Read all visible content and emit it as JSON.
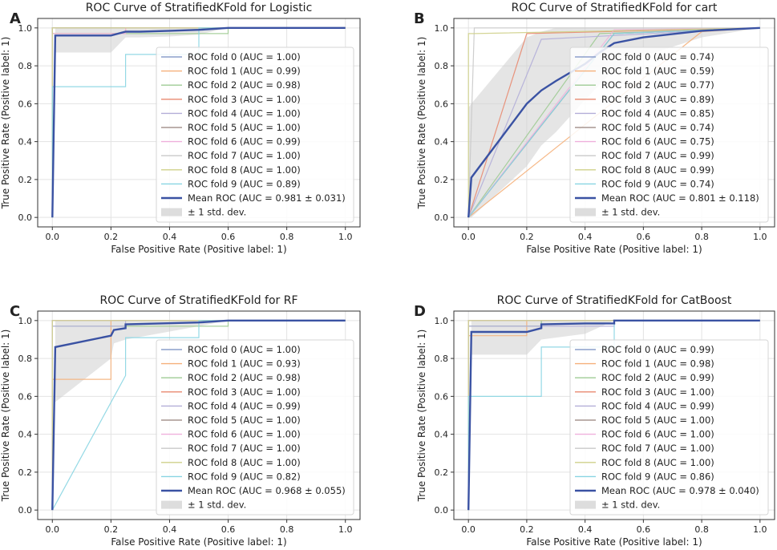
{
  "chart_data": [
    {
      "panel_label": "A",
      "type": "line",
      "title": "ROC Curve of StratifiedKFold for Logistic",
      "xlabel": "False Positive Rate (Positive label: 1)",
      "ylabel": "True Positive Rate (Positive label: 1)",
      "xlim": [
        -0.05,
        1.05
      ],
      "ylim": [
        -0.05,
        1.05
      ],
      "xticks": [
        "0.0",
        "0.2",
        "0.4",
        "0.6",
        "0.8",
        "1.0"
      ],
      "yticks": [
        "0.0",
        "0.2",
        "0.4",
        "0.6",
        "0.8",
        "1.0"
      ],
      "grid": true,
      "legend_loc": "lower-right",
      "series": [
        {
          "name": "ROC fold 0 (AUC = 1.00)",
          "color": "#8c9fcc",
          "x": [
            0,
            0,
            1
          ],
          "y": [
            0,
            1,
            1
          ]
        },
        {
          "name": "ROC fold 1 (AUC = 0.99)",
          "color": "#f5b07a",
          "x": [
            0,
            0,
            0.25,
            0.25,
            1
          ],
          "y": [
            0,
            0.97,
            0.97,
            1,
            1
          ]
        },
        {
          "name": "ROC fold 2 (AUC = 0.98)",
          "color": "#9fcb94",
          "x": [
            0,
            0,
            0.5,
            0.5,
            0.6,
            0.6,
            1
          ],
          "y": [
            0,
            0.97,
            0.97,
            0.97,
            0.97,
            1,
            1
          ]
        },
        {
          "name": "ROC fold 3 (AUC = 1.00)",
          "color": "#e88a70",
          "x": [
            0,
            0,
            1
          ],
          "y": [
            0,
            1,
            1
          ]
        },
        {
          "name": "ROC fold 4 (AUC = 1.00)",
          "color": "#b3aed8",
          "x": [
            0,
            0,
            1
          ],
          "y": [
            0,
            1,
            1
          ]
        },
        {
          "name": "ROC fold 5 (AUC = 1.00)",
          "color": "#a79691",
          "x": [
            0,
            0,
            1
          ],
          "y": [
            0,
            1,
            1
          ]
        },
        {
          "name": "ROC fold 6 (AUC = 0.99)",
          "color": "#efb0dc",
          "x": [
            0,
            0,
            0.25,
            0.25,
            1
          ],
          "y": [
            0,
            0.97,
            0.97,
            1,
            1
          ]
        },
        {
          "name": "ROC fold 7 (AUC = 1.00)",
          "color": "#c9c9c9",
          "x": [
            0,
            0,
            1
          ],
          "y": [
            0,
            1,
            1
          ]
        },
        {
          "name": "ROC fold 8 (AUC = 1.00)",
          "color": "#cfd08a",
          "x": [
            0,
            0,
            1
          ],
          "y": [
            0,
            1,
            1
          ]
        },
        {
          "name": "ROC fold 9 (AUC = 0.89)",
          "color": "#88d5e2",
          "x": [
            0,
            0,
            0.25,
            0.25,
            0.5,
            0.5,
            1
          ],
          "y": [
            0,
            0.69,
            0.69,
            0.86,
            0.86,
            1,
            1
          ]
        }
      ],
      "mean": {
        "name": "Mean ROC (AUC = 0.981 ± 0.031)",
        "color": "#3a52a3",
        "x": [
          0,
          0.01,
          0.1,
          0.2,
          0.25,
          0.3,
          0.4,
          0.5,
          0.6,
          0.8,
          1.0
        ],
        "y": [
          0,
          0.96,
          0.96,
          0.96,
          0.98,
          0.98,
          0.985,
          0.99,
          1.0,
          1.0,
          1.0
        ]
      },
      "band": {
        "name": "± 1 std. dev.",
        "color": "#cfcfcf",
        "x": [
          0.01,
          0.1,
          0.2,
          0.25,
          0.3,
          0.4,
          0.5,
          0.6,
          1.0
        ],
        "upper": [
          1.0,
          1.0,
          1.0,
          1.0,
          1.0,
          1.0,
          1.0,
          1.0,
          1.0
        ],
        "lower": [
          0.87,
          0.87,
          0.87,
          0.95,
          0.95,
          0.955,
          0.965,
          1.0,
          1.0
        ]
      }
    },
    {
      "panel_label": "B",
      "type": "line",
      "title": "ROC Curve of StratifiedKFold for cart",
      "xlabel": "False Positive Rate (Positive label: 1)",
      "ylabel": "True Positive Rate (Positive label: 1)",
      "xlim": [
        -0.05,
        1.05
      ],
      "ylim": [
        -0.05,
        1.05
      ],
      "xticks": [
        "0.0",
        "0.2",
        "0.4",
        "0.6",
        "0.8",
        "1.0"
      ],
      "yticks": [
        "0.0",
        "0.2",
        "0.4",
        "0.6",
        "0.8",
        "1.0"
      ],
      "grid": true,
      "legend_loc": "lower-right",
      "series": [
        {
          "name": "ROC fold 0 (AUC = 0.74)",
          "color": "#8c9fcc",
          "x": [
            0,
            0.5,
            1
          ],
          "y": [
            0,
            0.97,
            1
          ]
        },
        {
          "name": "ROC fold 1 (AUC = 0.59)",
          "color": "#f5b07a",
          "x": [
            0,
            0.8,
            1
          ],
          "y": [
            0,
            0.98,
            1
          ]
        },
        {
          "name": "ROC fold 2 (AUC = 0.77)",
          "color": "#9fcb94",
          "x": [
            0,
            0.45,
            1
          ],
          "y": [
            0,
            0.97,
            1
          ]
        },
        {
          "name": "ROC fold 3 (AUC = 0.89)",
          "color": "#e88a70",
          "x": [
            0,
            0.2,
            1
          ],
          "y": [
            0,
            0.97,
            1
          ]
        },
        {
          "name": "ROC fold 4 (AUC = 0.85)",
          "color": "#b3aed8",
          "x": [
            0,
            0.25,
            1
          ],
          "y": [
            0,
            0.94,
            1
          ]
        },
        {
          "name": "ROC fold 5 (AUC = 0.74)",
          "color": "#a79691",
          "x": [
            0,
            0.5,
            1
          ],
          "y": [
            0,
            0.97,
            1
          ]
        },
        {
          "name": "ROC fold 6 (AUC = 0.75)",
          "color": "#efb0dc",
          "x": [
            0,
            0.5,
            1
          ],
          "y": [
            0,
            0.99,
            1
          ]
        },
        {
          "name": "ROC fold 7 (AUC = 0.99)",
          "color": "#c9c9c9",
          "x": [
            0,
            0.02,
            1
          ],
          "y": [
            0,
            1.0,
            1
          ]
        },
        {
          "name": "ROC fold 8 (AUC = 0.99)",
          "color": "#cfd08a",
          "x": [
            0,
            0,
            0.02,
            1
          ],
          "y": [
            0,
            0.97,
            0.97,
            1
          ]
        },
        {
          "name": "ROC fold 9 (AUC = 0.74)",
          "color": "#88d5e2",
          "x": [
            0,
            0.5,
            1
          ],
          "y": [
            0,
            0.97,
            1
          ]
        }
      ],
      "mean": {
        "name": "Mean ROC (AUC = 0.801 ± 0.118)",
        "color": "#3a52a3",
        "x": [
          0,
          0.01,
          0.2,
          0.25,
          0.3,
          0.4,
          0.45,
          0.5,
          0.6,
          0.8,
          1.0
        ],
        "y": [
          0,
          0.21,
          0.6,
          0.67,
          0.72,
          0.81,
          0.87,
          0.92,
          0.95,
          0.985,
          1.0
        ]
      },
      "band": {
        "name": "± 1 std. dev.",
        "color": "#cfcfcf",
        "x": [
          0,
          0.01,
          0.2,
          0.25,
          0.3,
          0.4,
          0.45,
          0.5,
          0.6,
          0.8,
          1.0
        ],
        "upper": [
          0.58,
          0.6,
          0.95,
          0.98,
          1.0,
          1.0,
          1.0,
          1.0,
          1.0,
          1.0,
          1.0
        ],
        "lower": [
          0,
          0.0,
          0.27,
          0.38,
          0.45,
          0.62,
          0.7,
          0.78,
          0.85,
          0.95,
          1.0
        ]
      }
    },
    {
      "panel_label": "C",
      "type": "line",
      "title": "ROC Curve of StratifiedKFold for RF",
      "xlabel": "False Positive Rate (Positive label: 1)",
      "ylabel": "True Positive Rate (Positive label: 1)",
      "xlim": [
        -0.05,
        1.05
      ],
      "ylim": [
        -0.05,
        1.05
      ],
      "xticks": [
        "0.0",
        "0.2",
        "0.4",
        "0.6",
        "0.8",
        "1.0"
      ],
      "yticks": [
        "0.0",
        "0.2",
        "0.4",
        "0.6",
        "0.8",
        "1.0"
      ],
      "grid": true,
      "legend_loc": "lower-right",
      "series": [
        {
          "name": "ROC fold 0 (AUC = 1.00)",
          "color": "#8c9fcc",
          "x": [
            0,
            0,
            1
          ],
          "y": [
            0,
            1,
            1
          ]
        },
        {
          "name": "ROC fold 1 (AUC = 0.93)",
          "color": "#f5b07a",
          "x": [
            0,
            0,
            0.2,
            0.2,
            1
          ],
          "y": [
            0,
            0.69,
            0.69,
            1,
            1
          ]
        },
        {
          "name": "ROC fold 2 (AUC = 0.98)",
          "color": "#9fcb94",
          "x": [
            0,
            0,
            0.6,
            0.6,
            1
          ],
          "y": [
            0,
            0.97,
            0.97,
            1,
            1
          ]
        },
        {
          "name": "ROC fold 3 (AUC = 1.00)",
          "color": "#e88a70",
          "x": [
            0,
            0,
            1
          ],
          "y": [
            0,
            1,
            1
          ]
        },
        {
          "name": "ROC fold 4 (AUC = 0.99)",
          "color": "#b3aed8",
          "x": [
            0,
            0,
            0.25,
            0.25,
            1
          ],
          "y": [
            0,
            0.97,
            0.97,
            1,
            1
          ]
        },
        {
          "name": "ROC fold 5 (AUC = 1.00)",
          "color": "#a79691",
          "x": [
            0,
            0,
            1
          ],
          "y": [
            0,
            1,
            1
          ]
        },
        {
          "name": "ROC fold 6 (AUC = 1.00)",
          "color": "#efb0dc",
          "x": [
            0,
            0,
            1
          ],
          "y": [
            0,
            1,
            1
          ]
        },
        {
          "name": "ROC fold 7 (AUC = 1.00)",
          "color": "#c9c9c9",
          "x": [
            0,
            0,
            1
          ],
          "y": [
            0,
            1,
            1
          ]
        },
        {
          "name": "ROC fold 8 (AUC = 1.00)",
          "color": "#cfd08a",
          "x": [
            0,
            0,
            1
          ],
          "y": [
            0,
            1,
            1
          ]
        },
        {
          "name": "ROC fold 9 (AUC = 0.82)",
          "color": "#88d5e2",
          "x": [
            0,
            0.25,
            0.25,
            0.5,
            0.5,
            1
          ],
          "y": [
            0,
            0.71,
            0.91,
            0.91,
            1,
            1
          ]
        }
      ],
      "mean": {
        "name": "Mean ROC (AUC = 0.968 ± 0.055)",
        "color": "#3a52a3",
        "x": [
          0,
          0.01,
          0.2,
          0.21,
          0.25,
          0.25,
          0.5,
          0.6,
          0.8,
          1.0
        ],
        "y": [
          0,
          0.86,
          0.92,
          0.95,
          0.96,
          0.98,
          0.99,
          1.0,
          1.0,
          1.0
        ]
      },
      "band": {
        "name": "± 1 std. dev.",
        "color": "#cfcfcf",
        "x": [
          0.01,
          0.2,
          0.21,
          0.25,
          0.5,
          0.6,
          1.0
        ],
        "upper": [
          1.0,
          1.0,
          1.0,
          1.0,
          1.0,
          1.0,
          1.0
        ],
        "lower": [
          0.57,
          0.8,
          0.88,
          0.9,
          0.97,
          1.0,
          1.0
        ]
      }
    },
    {
      "panel_label": "D",
      "type": "line",
      "title": "ROC Curve of StratifiedKFold for CatBoost",
      "xlabel": "False Positive Rate (Positive label: 1)",
      "ylabel": "True Positive Rate (Positive label: 1)",
      "xlim": [
        -0.05,
        1.05
      ],
      "ylim": [
        -0.05,
        1.05
      ],
      "xticks": [
        "0.0",
        "0.2",
        "0.4",
        "0.6",
        "0.8",
        "1.0"
      ],
      "yticks": [
        "0.0",
        "0.2",
        "0.4",
        "0.6",
        "0.8",
        "1.0"
      ],
      "grid": true,
      "legend_loc": "lower-right",
      "series": [
        {
          "name": "ROC fold 0 (AUC = 0.99)",
          "color": "#8c9fcc",
          "x": [
            0,
            0,
            0.25,
            0.25,
            1
          ],
          "y": [
            0,
            0.97,
            0.97,
            1,
            1
          ]
        },
        {
          "name": "ROC fold 1 (AUC = 0.98)",
          "color": "#f5b07a",
          "x": [
            0,
            0,
            0.2,
            0.2,
            1
          ],
          "y": [
            0,
            0.92,
            0.92,
            1,
            1
          ]
        },
        {
          "name": "ROC fold 2 (AUC = 0.99)",
          "color": "#9fcb94",
          "x": [
            0,
            0,
            0.25,
            0.25,
            1
          ],
          "y": [
            0,
            0.97,
            0.97,
            1,
            1
          ]
        },
        {
          "name": "ROC fold 3 (AUC = 1.00)",
          "color": "#e88a70",
          "x": [
            0,
            0,
            1
          ],
          "y": [
            0,
            1,
            1
          ]
        },
        {
          "name": "ROC fold 4 (AUC = 0.99)",
          "color": "#b3aed8",
          "x": [
            0,
            0,
            0.5,
            0.5,
            1
          ],
          "y": [
            0,
            0.97,
            0.97,
            1,
            1
          ]
        },
        {
          "name": "ROC fold 5 (AUC = 1.00)",
          "color": "#a79691",
          "x": [
            0,
            0,
            1
          ],
          "y": [
            0,
            1,
            1
          ]
        },
        {
          "name": "ROC fold 6 (AUC = 1.00)",
          "color": "#efb0dc",
          "x": [
            0,
            0,
            1
          ],
          "y": [
            0,
            1,
            1
          ]
        },
        {
          "name": "ROC fold 7 (AUC = 1.00)",
          "color": "#c9c9c9",
          "x": [
            0,
            0,
            1
          ],
          "y": [
            0,
            1,
            1
          ]
        },
        {
          "name": "ROC fold 8 (AUC = 1.00)",
          "color": "#cfd08a",
          "x": [
            0,
            0,
            1
          ],
          "y": [
            0,
            1,
            1
          ]
        },
        {
          "name": "ROC fold 9 (AUC = 0.86)",
          "color": "#88d5e2",
          "x": [
            0,
            0,
            0.25,
            0.25,
            0.5,
            0.5,
            1
          ],
          "y": [
            0,
            0.6,
            0.6,
            0.86,
            0.86,
            1,
            1
          ]
        }
      ],
      "mean": {
        "name": "Mean ROC (AUC = 0.978 ± 0.040)",
        "color": "#3a52a3",
        "x": [
          0,
          0.01,
          0.2,
          0.25,
          0.25,
          0.4,
          0.5,
          0.5,
          0.8,
          1.0
        ],
        "y": [
          0,
          0.94,
          0.94,
          0.96,
          0.98,
          0.985,
          0.985,
          1.0,
          1.0,
          1.0
        ]
      },
      "band": {
        "name": "± 1 std. dev.",
        "color": "#cfcfcf",
        "x": [
          0.01,
          0.2,
          0.25,
          0.4,
          0.5,
          1.0
        ],
        "upper": [
          1.0,
          1.0,
          1.0,
          1.0,
          1.0,
          1.0
        ],
        "lower": [
          0.82,
          0.82,
          0.9,
          0.93,
          1.0,
          1.0
        ]
      }
    }
  ]
}
